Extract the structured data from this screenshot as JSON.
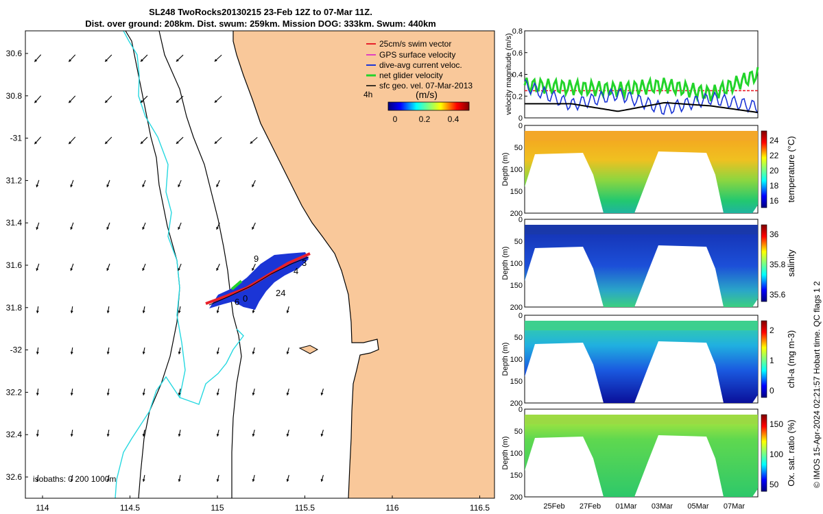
{
  "title": {
    "line1": "SL248 TwoRocks20130215 23-Feb 12Z to 07-Mar 11Z.",
    "line2": "Dist. over ground: 208km. Dist. swum: 259km. Mission DOG: 333km. Swum: 440km"
  },
  "map": {
    "lon_ticks": [
      "114",
      "114.5",
      "115",
      "115.5",
      "116",
      "116.5"
    ],
    "lat_ticks": [
      "30.6",
      "30.8",
      "-31",
      "31.2",
      "31.4",
      "31.6",
      "31.8",
      "-32",
      "32.2",
      "32.4",
      "32.6"
    ],
    "lon_range": [
      113.95,
      116.5
    ],
    "lat_range": [
      -30.5,
      -32.7
    ],
    "legend": [
      {
        "label": "25cm/s swim vector",
        "color": "#e8202a"
      },
      {
        "label": "GPS surface velocity",
        "color": "#e040c0"
      },
      {
        "label": "dive-avg current veloc.",
        "color": "#1b35d6"
      },
      {
        "label": "net glider velocity",
        "color": "#22d42a"
      },
      {
        "label": "sfc geo. vel. 07-Mar-2013",
        "color": "#000000"
      }
    ],
    "colorbar": {
      "label": "(m/s)",
      "ticks": [
        "0",
        "0.2",
        "0.4"
      ],
      "range": [
        0,
        0.55
      ]
    },
    "time_step_label": "4h",
    "isobath_label": "isobaths: 0   200 1000m",
    "track_labels": [
      "9",
      "3",
      "4",
      "24",
      "6",
      "0"
    ],
    "land_color": "#f9c89a",
    "isobath_color": "#25d8e0"
  },
  "side_panels": {
    "x_ticks": [
      "25Feb",
      "27Feb",
      "01Mar",
      "03Mar",
      "05Mar",
      "07Mar"
    ],
    "velocity": {
      "ylabel": "velocity magnitude (m/s)",
      "y_ticks": [
        "0",
        "0.2",
        "0.4",
        "0.6",
        "0.8"
      ],
      "ylim": [
        0,
        0.8
      ]
    },
    "depth_ylabel": "Depth (m)",
    "depth_ticks": [
      "0",
      "50",
      "100",
      "150",
      "200"
    ],
    "temperature": {
      "label": "temperature (°C)",
      "ticks": [
        "24",
        "22",
        "20",
        "18",
        "16"
      ]
    },
    "salinity": {
      "label": "salinity",
      "ticks": [
        "36",
        "35.8",
        "35.6"
      ]
    },
    "chla": {
      "label": "chl-a (mg m-3)",
      "ticks": [
        "2",
        "1",
        "0"
      ]
    },
    "oxygen": {
      "label": "Ox. sat. ratio (%)",
      "ticks": [
        "150",
        "100",
        "50"
      ]
    }
  },
  "credit": "© IMOS 15-Apr-2024 02:21:57 Hobart time. QC flags 1  2",
  "chart_data": [
    {
      "type": "line",
      "title": "",
      "xlabel": "",
      "ylabel": "velocity magnitude (m/s)",
      "ylim": [
        0,
        0.8
      ],
      "x_categories": [
        "25Feb",
        "27Feb",
        "01Mar",
        "03Mar",
        "05Mar",
        "07Mar"
      ],
      "series": [
        {
          "name": "25cm/s swim vector",
          "values": [
            0.25,
            0.25,
            0.25,
            0.25,
            0.25,
            0.25
          ]
        },
        {
          "name": "net glider velocity",
          "values": [
            0.3,
            0.28,
            0.26,
            0.3,
            0.22,
            0.4
          ]
        },
        {
          "name": "dive-avg current veloc.",
          "values": [
            0.3,
            0.12,
            0.22,
            0.08,
            0.18,
            0.1
          ]
        },
        {
          "name": "sfc geo. vel. 07-Mar-2013",
          "values": [
            0.13,
            0.13,
            0.06,
            0.14,
            0.11,
            0.05
          ]
        }
      ]
    }
  ]
}
